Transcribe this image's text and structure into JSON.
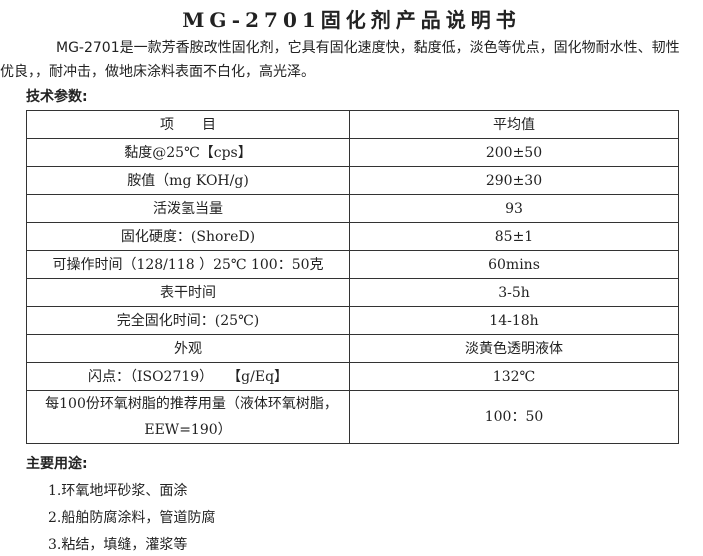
{
  "header": {
    "title": "MG-2701固化剂产品说明书"
  },
  "intro": "MG-2701是一款芳香胺改性固化剂，它具有固化速度快，黏度低，淡色等优点，固化物耐水性、韧性优良，，耐冲击，做地床涂料表面不白化，高光泽。",
  "spec_heading": "技术参数:",
  "table": {
    "columns": [
      "项　　目",
      "平均值"
    ],
    "rows": [
      [
        "黏度@25℃【cps】",
        "200±50"
      ],
      [
        "胺值（mg KOH/g)",
        "290±30"
      ],
      [
        "活泼氢当量",
        "93"
      ],
      [
        "固化硬度：(ShoreD)",
        "85±1"
      ],
      [
        "可操作时间（128/118 ）25℃ 100：50克",
        "60mins"
      ],
      [
        "表干时间",
        "3-5h"
      ],
      [
        "完全固化时间：(25℃)",
        "14-18h"
      ],
      [
        "外观",
        "淡黄色透明液体"
      ],
      [
        "闪点：（ISO2719）　　【g/Eq】",
        "132℃"
      ],
      [
        "每100份环氧树脂的推荐用量（液体环氧树脂，　EEW=190）",
        "100：50"
      ]
    ]
  },
  "uses_heading": "主要用途:",
  "uses": [
    "1.环氧地坪砂浆、面涂",
    "2.船舶防腐涂料，管道防腐",
    "3.粘结，填缝，灌浆等"
  ]
}
